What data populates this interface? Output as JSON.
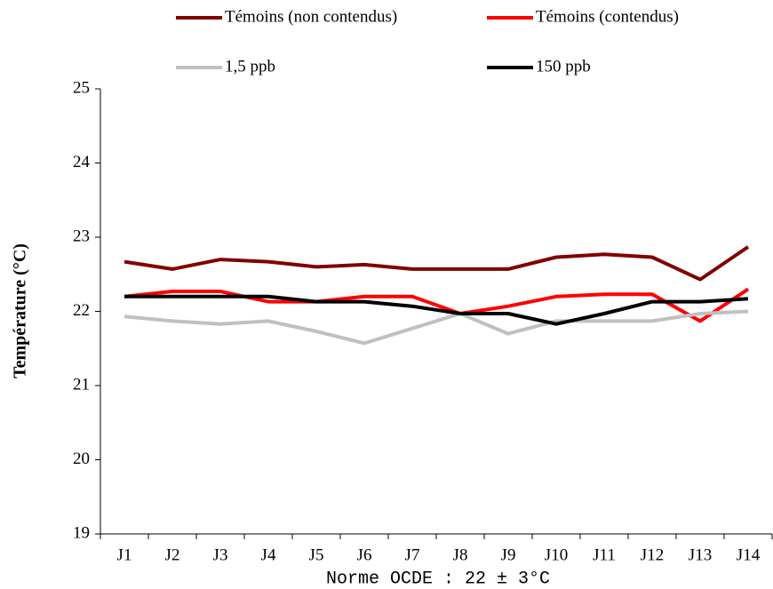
{
  "chart_data": {
    "type": "line",
    "y_label": "Température (°C)",
    "annotation": "Norme OCDE : 22 ± 3°C",
    "categories": [
      "J1",
      "J2",
      "J3",
      "J4",
      "J5",
      "J6",
      "J7",
      "J8",
      "J9",
      "J10",
      "J11",
      "J12",
      "J13",
      "J14"
    ],
    "series": [
      {
        "name": "Témoins (non contendus)",
        "color": "#800000",
        "values": [
          22.67,
          22.57,
          22.7,
          22.67,
          22.6,
          22.63,
          22.57,
          22.57,
          22.57,
          22.73,
          22.77,
          22.73,
          22.43,
          22.87
        ]
      },
      {
        "name": "Témoins (contendus)",
        "color": "#ff0000",
        "values": [
          22.2,
          22.27,
          22.27,
          22.13,
          22.13,
          22.2,
          22.2,
          21.97,
          22.07,
          22.2,
          22.23,
          22.23,
          21.87,
          22.3
        ]
      },
      {
        "name": "1,5 ppb",
        "color": "#c0c0c0",
        "values": [
          21.93,
          21.87,
          21.83,
          21.87,
          21.73,
          21.57,
          21.77,
          21.97,
          21.7,
          21.87,
          21.87,
          21.87,
          21.97,
          22.0
        ]
      },
      {
        "name": "150 ppb",
        "color": "#000000",
        "values": [
          22.2,
          22.2,
          22.2,
          22.2,
          22.13,
          22.13,
          22.07,
          21.97,
          21.97,
          21.83,
          21.97,
          22.13,
          22.13,
          22.17
        ]
      }
    ],
    "ylim": [
      19,
      25
    ],
    "yticks": [
      19,
      20,
      21,
      22,
      23,
      24,
      25
    ],
    "grid": false
  }
}
